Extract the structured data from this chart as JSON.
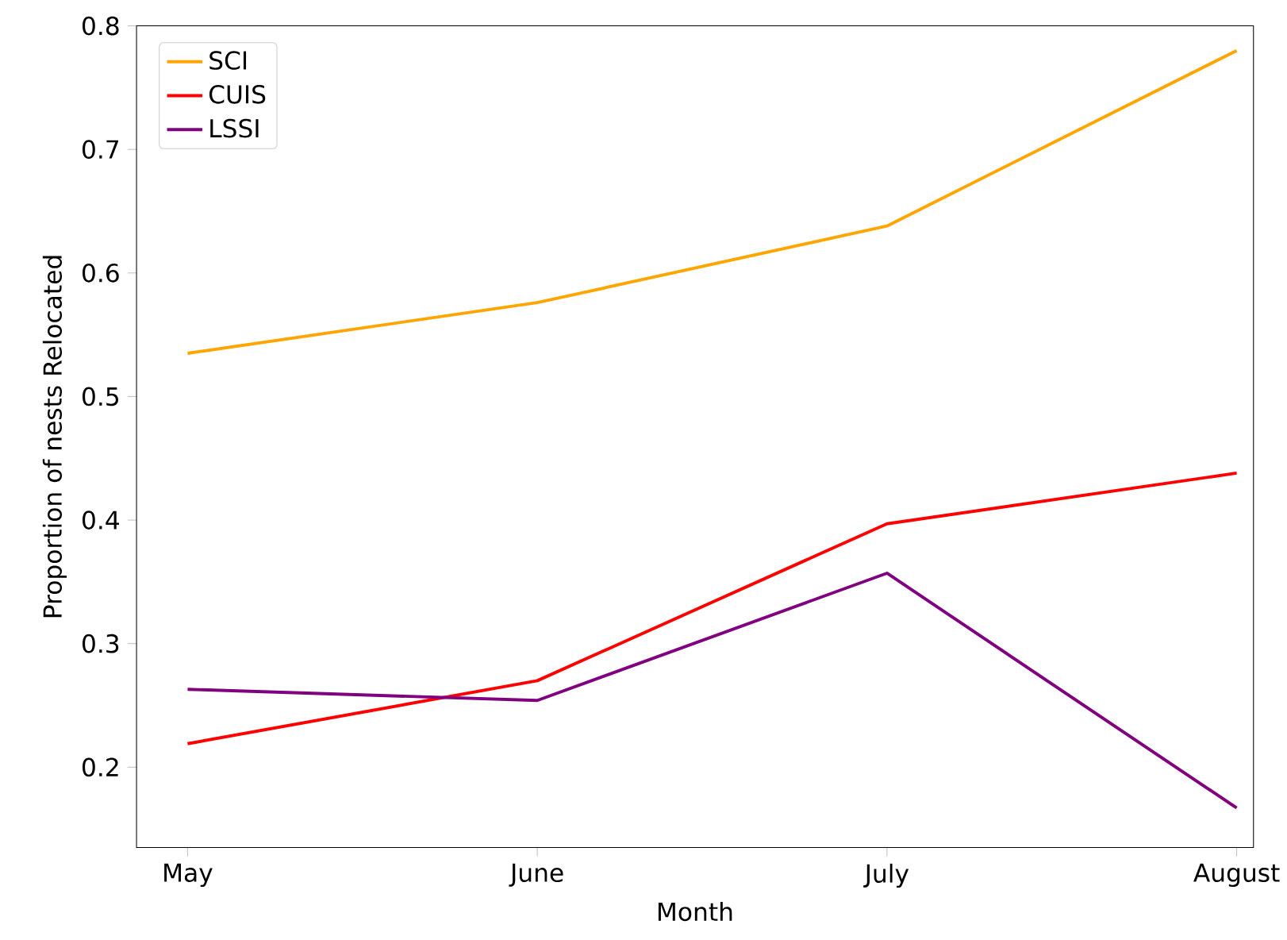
{
  "chart_data": {
    "type": "line",
    "xlabel": "Month",
    "ylabel": "Proportion of nests Relocated",
    "categories": [
      "May",
      "June",
      "July",
      "August"
    ],
    "series": [
      {
        "name": "SCI",
        "color": "#ffa500",
        "values": [
          0.535,
          0.576,
          0.638,
          0.78
        ]
      },
      {
        "name": "CUIS",
        "color": "#ff0000",
        "values": [
          0.219,
          0.27,
          0.397,
          0.438
        ]
      },
      {
        "name": "LSSI",
        "color": "#800080",
        "values": [
          0.263,
          0.254,
          0.357,
          0.167
        ]
      }
    ],
    "ylim": [
      0.135,
      0.8
    ],
    "yticks": [
      0.2,
      0.3,
      0.4,
      0.5,
      0.6,
      0.7,
      0.8
    ],
    "legend": "top left",
    "grid": false,
    "marker": "none",
    "line_style": "solid"
  }
}
